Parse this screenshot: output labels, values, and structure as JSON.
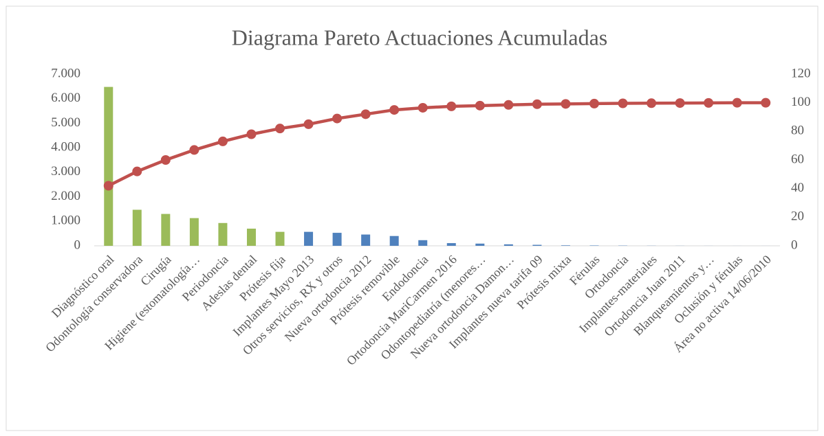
{
  "chart_data": {
    "type": "pareto",
    "title": "Diagrama Pareto Actuaciones Acumuladas",
    "categories": [
      "Diagnóstico oral",
      "Odontología conservadora",
      "Cirugía",
      "Higiene (estomatología…",
      "Periodoncia",
      "Adeslas dental",
      "Prótesis fija",
      "Implantes Mayo 2013",
      "Otros servicios, RX y otros",
      "Nueva ortodoncia 2012",
      "Prótesis removible",
      "Endodoncia",
      "Ortodoncia MariCarmen 2016",
      "Odontopediatría (menores…",
      "Nueva ortodoncia Damon…",
      "Implantes nueva tarifa 09",
      "Prótesis mixta",
      "Férulas",
      "Ortodoncia",
      "Implantes-materiales",
      "Ortodoncia Juan 2011",
      "Blanqueamientos y…",
      "Oclusión y férulas",
      "Área no activa 14/06/2010"
    ],
    "series": [
      {
        "type": "bar",
        "values": [
          6480,
          1470,
          1300,
          1130,
          930,
          700,
          570,
          570,
          530,
          460,
          400,
          230,
          110,
          90,
          60,
          40,
          20,
          15,
          10,
          5,
          3,
          2,
          1,
          1
        ],
        "colors": [
          "#9bbb59",
          "#9bbb59",
          "#9bbb59",
          "#9bbb59",
          "#9bbb59",
          "#9bbb59",
          "#9bbb59",
          "#4f81bd",
          "#4f81bd",
          "#4f81bd",
          "#4f81bd",
          "#4f81bd",
          "#4f81bd",
          "#4f81bd",
          "#4f81bd",
          "#4f81bd",
          "#4f81bd",
          "#4f81bd",
          "#4f81bd",
          "#4f81bd",
          "#4f81bd",
          "#4f81bd",
          "#4f81bd",
          "#4f81bd"
        ]
      },
      {
        "type": "line",
        "axis": "y2",
        "color": "#c0504d",
        "values": [
          42,
          52,
          60,
          67,
          73,
          78,
          82,
          85,
          89,
          92,
          95,
          96.5,
          97.5,
          98,
          98.5,
          99,
          99.2,
          99.4,
          99.6,
          99.7,
          99.8,
          99.9,
          100,
          100
        ]
      }
    ],
    "ylim": [
      0,
      7000
    ],
    "yticks": [
      0,
      {
        "value": 1000,
        "label": "1.000"
      },
      {
        "value": 2000,
        "label": "2.000"
      },
      {
        "value": 3000,
        "label": "3.000"
      },
      {
        "value": 4000,
        "label": "4.000"
      },
      {
        "value": 5000,
        "label": "5.000"
      },
      {
        "value": 6000,
        "label": "6.000"
      },
      {
        "value": 7000,
        "label": "7.000"
      }
    ],
    "y2lim": [
      0,
      120
    ],
    "y2ticks": [
      0,
      20,
      40,
      60,
      80,
      100,
      120
    ]
  }
}
